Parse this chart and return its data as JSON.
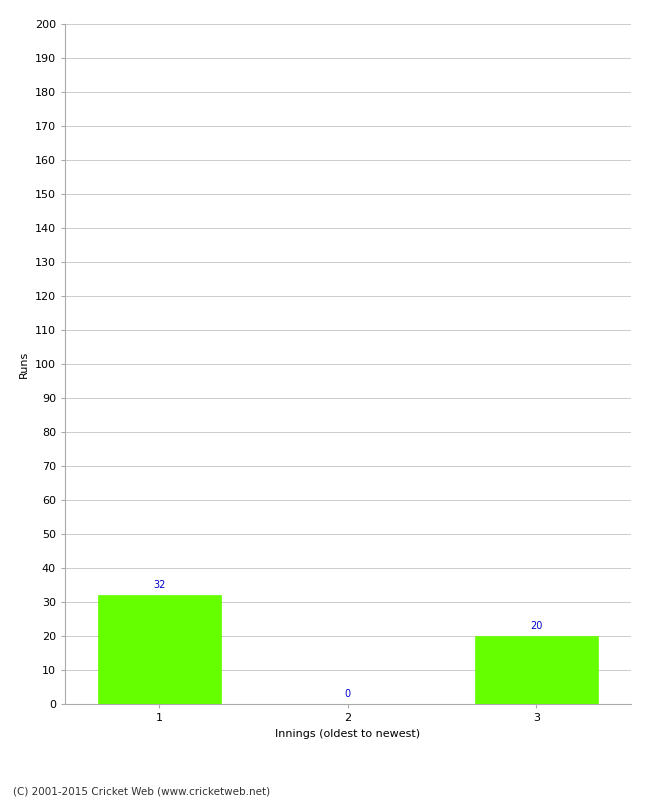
{
  "categories": [
    "1",
    "2",
    "3"
  ],
  "values": [
    32,
    0,
    20
  ],
  "bar_color": "#66ff00",
  "bar_edge_color": "#66ff00",
  "title": "",
  "ylabel": "Runs",
  "xlabel": "Innings (oldest to newest)",
  "ylim": [
    0,
    200
  ],
  "yticks": [
    0,
    10,
    20,
    30,
    40,
    50,
    60,
    70,
    80,
    90,
    100,
    110,
    120,
    130,
    140,
    150,
    160,
    170,
    180,
    190,
    200
  ],
  "label_color": "#0000cc",
  "label_fontsize": 7.0,
  "footer": "(C) 2001-2015 Cricket Web (www.cricketweb.net)",
  "background_color": "#ffffff",
  "grid_color": "#cccccc",
  "tick_fontsize": 8,
  "axis_label_fontsize": 8
}
